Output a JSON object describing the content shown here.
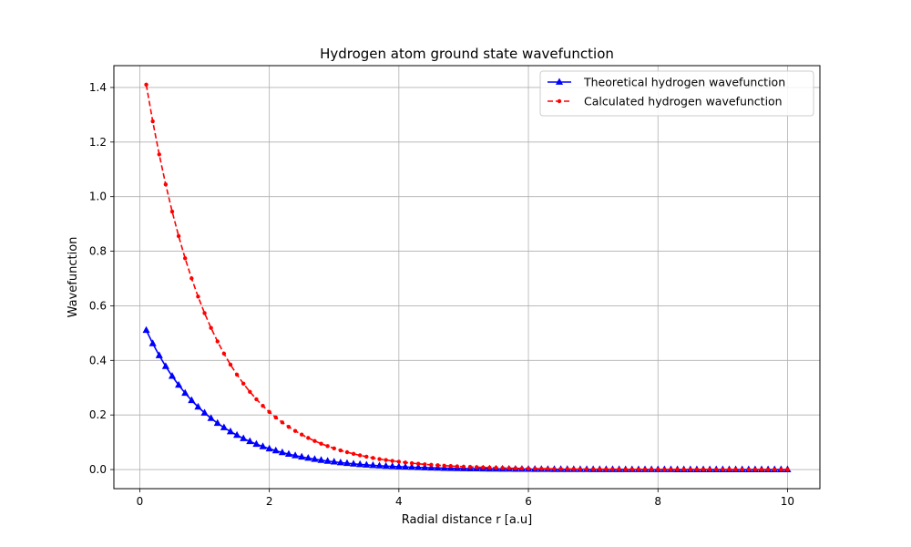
{
  "chart_data": {
    "type": "line",
    "title": "Hydrogen atom ground state wavefunction",
    "xlabel": "Radial distance r [a.u]",
    "ylabel": "Wavefunction",
    "xlim": [
      -0.4,
      10.5
    ],
    "ylim": [
      -0.07,
      1.48
    ],
    "xticks": [
      0,
      2,
      4,
      6,
      8,
      10
    ],
    "yticks": [
      0.0,
      0.2,
      0.4,
      0.6,
      0.8,
      1.0,
      1.2,
      1.4
    ],
    "grid": true,
    "legend_position": "top-right",
    "x": [
      0.1,
      0.2,
      0.3,
      0.4,
      0.5,
      0.6,
      0.7,
      0.8,
      0.9,
      1.0,
      1.1,
      1.2,
      1.3,
      1.4,
      1.5,
      1.6,
      1.7,
      1.8,
      1.9,
      2.0,
      2.1,
      2.2,
      2.3,
      2.4,
      2.5,
      2.6,
      2.7,
      2.8,
      2.9,
      3.0,
      3.1,
      3.2,
      3.3,
      3.4,
      3.5,
      3.6,
      3.7,
      3.8,
      3.9,
      4.0,
      4.1,
      4.2,
      4.3,
      4.4,
      4.5,
      4.6,
      4.7,
      4.8,
      4.9,
      5.0,
      5.1,
      5.2,
      5.3,
      5.4,
      5.5,
      5.6,
      5.7,
      5.8,
      5.9,
      6.0,
      6.1,
      6.2,
      6.3,
      6.4,
      6.5,
      6.6,
      6.7,
      6.8,
      6.9,
      7.0,
      7.1,
      7.2,
      7.3,
      7.4,
      7.5,
      7.6,
      7.7,
      7.8,
      7.9,
      8.0,
      8.1,
      8.2,
      8.3,
      8.4,
      8.5,
      8.6,
      8.7,
      8.8,
      8.9,
      9.0,
      9.1,
      9.2,
      9.3,
      9.4,
      9.5,
      9.6,
      9.7,
      9.8,
      9.9,
      10.0
    ],
    "series": [
      {
        "name": "Theoretical hydrogen wavefunction",
        "color": "#0000ff",
        "linestyle": "solid",
        "marker": "triangle",
        "values": [
          0.5105,
          0.4619,
          0.418,
          0.3782,
          0.3422,
          0.3097,
          0.2802,
          0.2535,
          0.2294,
          0.2076,
          0.1878,
          0.1699,
          0.1538,
          0.1391,
          0.1259,
          0.1139,
          0.1031,
          0.0932,
          0.0844,
          0.0763,
          0.0691,
          0.0625,
          0.0565,
          0.0512,
          0.0463,
          0.0419,
          0.0379,
          0.0343,
          0.031,
          0.0281,
          0.0254,
          0.023,
          0.0208,
          0.0188,
          0.017,
          0.0154,
          0.0139,
          0.0126,
          0.0114,
          0.0103,
          0.0094,
          0.0085,
          0.0077,
          0.0069,
          0.0063,
          0.0057,
          0.0051,
          0.0047,
          0.0042,
          0.0038,
          0.0034,
          0.0031,
          0.0028,
          0.0025,
          0.0023,
          0.0021,
          0.0019,
          0.0017,
          0.0015,
          0.0014,
          0.0013,
          0.0011,
          0.001,
          0.0009,
          0.0009,
          0.0008,
          0.0007,
          0.0006,
          0.0006,
          0.0005,
          0.0005,
          0.0004,
          0.0004,
          0.0004,
          0.0003,
          0.0003,
          0.0003,
          0.0002,
          0.0002,
          0.0002,
          0.0002,
          0.0002,
          0.0001,
          0.0001,
          0.0001,
          0.0001,
          0.0001,
          0.0001,
          0.0001,
          0.0001,
          0.0001,
          0.0001,
          0.0001,
          0.0,
          0.0,
          0.0,
          0.0,
          0.0,
          0.0,
          0.0
        ]
      },
      {
        "name": "Calculated hydrogen wavefunction",
        "color": "#ff0000",
        "linestyle": "dashed",
        "marker": "circle",
        "values": [
          1.4103,
          1.2761,
          1.1547,
          1.0448,
          0.9454,
          0.8554,
          0.774,
          0.7004,
          0.6337,
          0.5734,
          0.5189,
          0.4695,
          0.4248,
          0.3844,
          0.3478,
          0.3147,
          0.2848,
          0.2577,
          0.2332,
          0.211,
          0.1909,
          0.1727,
          0.1563,
          0.1414,
          0.128,
          0.1158,
          0.1048,
          0.0948,
          0.0858,
          0.0776,
          0.0702,
          0.0636,
          0.0575,
          0.052,
          0.0471,
          0.0426,
          0.0385,
          0.0349,
          0.0316,
          0.0286,
          0.0258,
          0.0234,
          0.0212,
          0.0191,
          0.0173,
          0.0157,
          0.0142,
          0.0128,
          0.0116,
          0.0105,
          0.0095,
          0.0086,
          0.0078,
          0.0071,
          0.0064,
          0.0058,
          0.0052,
          0.0047,
          0.0043,
          0.0039,
          0.0035,
          0.0032,
          0.0029,
          0.0026,
          0.0024,
          0.0021,
          0.0019,
          0.0017,
          0.0016,
          0.0014,
          0.0013,
          0.0012,
          0.0011,
          0.001,
          0.0009,
          0.0008,
          0.0007,
          0.0007,
          0.0006,
          0.0005,
          0.0005,
          0.0004,
          0.0004,
          0.0004,
          0.0003,
          0.0003,
          0.0003,
          0.0002,
          0.0002,
          0.0002,
          0.0002,
          0.0002,
          0.0001,
          0.0001,
          0.0001,
          0.0001,
          0.0001,
          0.0001,
          0.0001,
          0.0001
        ]
      }
    ]
  }
}
